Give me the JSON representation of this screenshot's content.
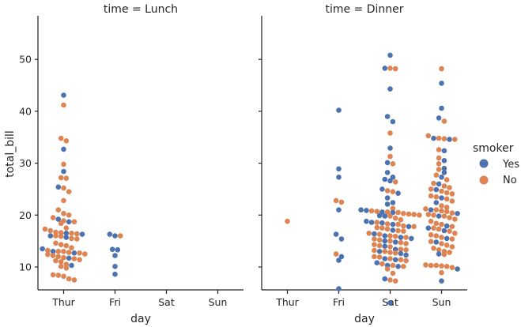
{
  "chart_data": {
    "type": "scatter",
    "kind": "swarm",
    "x_order": [
      "Thur",
      "Fri",
      "Sat",
      "Sun"
    ],
    "xlabel": "day",
    "ylabel": "total_bill",
    "ylim": [
      1,
      53
    ],
    "yticks": [
      10,
      20,
      30,
      40,
      50
    ],
    "legend": {
      "title": "smoker",
      "placement": "right",
      "items": [
        {
          "label": "Yes",
          "color": "#4c72b0"
        },
        {
          "label": "No",
          "color": "#dd8452"
        }
      ]
    },
    "panels": [
      {
        "title": "time = Lunch",
        "series": [
          {
            "name": "Yes",
            "color": "#4c72b0",
            "points": {
              "Thur": [
                43.1,
                32.7,
                28.4,
                25.4,
                19.2,
                18.7,
                16.5,
                16.3,
                16.0,
                15.7,
                13.5,
                13.0,
                12.7,
                11.7,
                10.3
              ],
              "Fri": [
                16.3,
                16.0,
                13.4,
                13.3,
                12.2,
                10.1,
                8.6
              ]
            }
          },
          {
            "name": "No",
            "color": "#dd8452",
            "points": {
              "Thur": [
                41.2,
                34.8,
                34.3,
                29.8,
                27.2,
                27.1,
                25.2,
                24.5,
                22.8,
                21.0,
                20.3,
                20.0,
                19.5,
                18.9,
                18.7,
                18.4,
                17.5,
                17.3,
                17.0,
                16.7,
                16.6,
                16.5,
                16.4,
                16.0,
                15.9,
                15.5,
                15.4,
                14.6,
                14.3,
                14.1,
                13.7,
                13.2,
                13.0,
                13.0,
                12.8,
                12.7,
                12.5,
                12.4,
                12.2,
                12.0,
                11.8,
                11.6,
                11.4,
                11.2,
                11.0,
                10.5,
                10.1,
                9.8,
                8.5,
                8.4,
                8.2,
                7.7,
                7.5
              ],
              "Fri": [
                16.0
              ]
            }
          }
        ]
      },
      {
        "title": "time = Dinner",
        "series": [
          {
            "name": "Yes",
            "color": "#4c72b0",
            "points": {
              "Fri": [
                40.2,
                28.9,
                27.3,
                21.0,
                16.3,
                15.4,
                12.0,
                11.3,
                5.8
              ],
              "Sat": [
                50.8,
                48.3,
                44.3,
                39.0,
                38.0,
                32.9,
                30.1,
                28.2,
                27.3,
                26.9,
                26.6,
                25.0,
                24.2,
                23.3,
                22.4,
                22.1,
                21.0,
                20.9,
                20.6,
                20.5,
                19.9,
                19.8,
                18.8,
                18.6,
                18.5,
                18.2,
                17.8,
                17.1,
                16.4,
                16.0,
                15.7,
                15.5,
                15.0,
                14.8,
                14.0,
                13.4,
                13.0,
                12.6,
                12.3,
                11.6,
                11.4,
                10.8,
                10.3,
                10.1,
                7.7,
                3.1
              ],
              "Sun": [
                45.4,
                40.6,
                38.7,
                34.8,
                34.6,
                32.4,
                30.5,
                29.0,
                28.2,
                27.3,
                26.0,
                24.9,
                23.3,
                22.4,
                21.0,
                20.3,
                19.8,
                17.9,
                17.5,
                17.0,
                15.5,
                14.8,
                12.5,
                9.6,
                7.3
              ]
            }
          },
          {
            "name": "No",
            "color": "#dd8452",
            "points": {
              "Thur": [
                18.8
              ],
              "Fri": [
                22.8,
                22.5,
                12.5
              ],
              "Sat": [
                48.3,
                48.2,
                35.8,
                31.3,
                29.9,
                26.4,
                24.7,
                24.5,
                21.3,
                20.8,
                20.7,
                20.6,
                20.5,
                20.3,
                20.2,
                20.1,
                20.0,
                19.8,
                19.4,
                19.1,
                18.6,
                18.3,
                18.2,
                17.9,
                17.8,
                17.6,
                17.5,
                17.3,
                17.0,
                16.9,
                16.5,
                16.3,
                16.0,
                15.9,
                15.7,
                15.4,
                15.2,
                15.0,
                14.7,
                14.5,
                14.3,
                14.1,
                13.9,
                13.4,
                13.3,
                13.2,
                13.0,
                12.8,
                12.7,
                12.0,
                11.9,
                11.6,
                11.4,
                11.2,
                10.6,
                10.3,
                10.1,
                9.6,
                8.8,
                7.5,
                7.3
              ],
              "Sun": [
                48.2,
                38.1,
                35.3,
                34.8,
                34.7,
                34.6,
                32.6,
                31.0,
                29.9,
                28.8,
                27.7,
                26.8,
                26.1,
                25.6,
                25.3,
                25.0,
                24.6,
                24.3,
                24.1,
                23.7,
                23.5,
                23.1,
                22.7,
                21.8,
                21.5,
                21.2,
                21.0,
                20.8,
                20.7,
                20.4,
                20.1,
                20.0,
                19.8,
                19.5,
                19.2,
                18.8,
                18.4,
                18.2,
                17.8,
                17.5,
                17.3,
                16.9,
                16.5,
                16.2,
                16.0,
                15.7,
                15.4,
                14.9,
                14.5,
                14.2,
                13.9,
                13.6,
                13.3,
                13.0,
                12.8,
                12.4,
                10.4,
                10.3,
                10.3,
                10.2,
                10.1,
                9.9,
                8.9
              ]
            }
          }
        ]
      }
    ]
  }
}
